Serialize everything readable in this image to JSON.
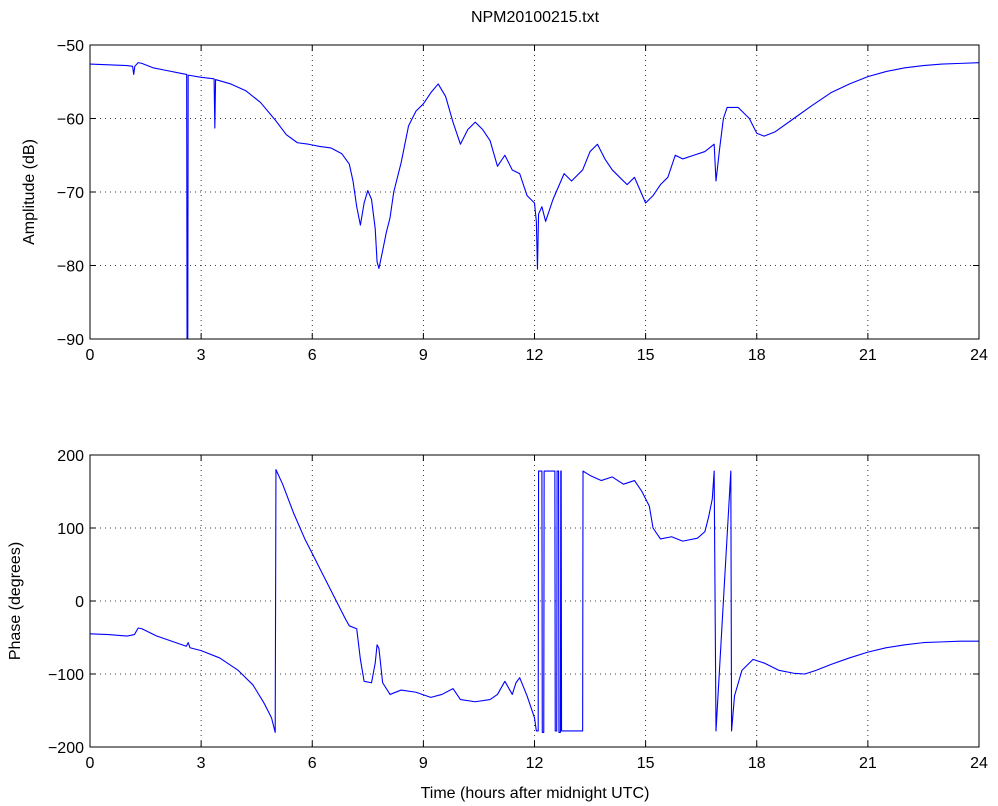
{
  "chart_data": [
    {
      "type": "line",
      "title": "NPM20100215.txt",
      "xlabel": "",
      "ylabel": "Amplitude (dB)",
      "xlim": [
        0,
        24
      ],
      "ylim": [
        -90,
        -50
      ],
      "xticks": [
        "0",
        "3",
        "6",
        "9",
        "12",
        "15",
        "18",
        "21",
        "24"
      ],
      "yticks": [
        "-90",
        "-80",
        "-70",
        "-60",
        "-50"
      ],
      "grid": true,
      "series": [
        {
          "color": "#0000ff",
          "points": [
            [
              0,
              -52.6
            ],
            [
              0.5,
              -52.7
            ],
            [
              1.0,
              -52.8
            ],
            [
              1.15,
              -52.9
            ],
            [
              1.18,
              -54.0
            ],
            [
              1.21,
              -52.9
            ],
            [
              1.3,
              -52.4
            ],
            [
              1.4,
              -52.5
            ],
            [
              1.7,
              -53.1
            ],
            [
              2.0,
              -53.4
            ],
            [
              2.5,
              -53.9
            ],
            [
              2.61,
              -54.0
            ],
            [
              2.62,
              -90.0
            ],
            [
              2.64,
              -90.0
            ],
            [
              2.65,
              -54.1
            ],
            [
              3.0,
              -54.4
            ],
            [
              3.35,
              -54.6
            ],
            [
              3.37,
              -61.3
            ],
            [
              3.39,
              -54.7
            ],
            [
              3.8,
              -55.3
            ],
            [
              4.2,
              -56.2
            ],
            [
              4.6,
              -57.8
            ],
            [
              5.0,
              -60.2
            ],
            [
              5.3,
              -62.2
            ],
            [
              5.6,
              -63.3
            ],
            [
              5.9,
              -63.5
            ],
            [
              6.2,
              -63.8
            ],
            [
              6.5,
              -64.0
            ],
            [
              6.8,
              -64.8
            ],
            [
              7.0,
              -66.2
            ],
            [
              7.1,
              -68.5
            ],
            [
              7.2,
              -72.0
            ],
            [
              7.3,
              -74.5
            ],
            [
              7.4,
              -71.5
            ],
            [
              7.5,
              -69.8
            ],
            [
              7.6,
              -71.0
            ],
            [
              7.7,
              -75.0
            ],
            [
              7.75,
              -79.5
            ],
            [
              7.8,
              -80.4
            ],
            [
              7.9,
              -78.0
            ],
            [
              8.0,
              -75.5
            ],
            [
              8.1,
              -73.5
            ],
            [
              8.2,
              -70.0
            ],
            [
              8.4,
              -66.0
            ],
            [
              8.6,
              -61.0
            ],
            [
              8.8,
              -59.0
            ],
            [
              9.0,
              -58.0
            ],
            [
              9.2,
              -56.5
            ],
            [
              9.4,
              -55.3
            ],
            [
              9.6,
              -57.0
            ],
            [
              9.8,
              -60.5
            ],
            [
              10.0,
              -63.5
            ],
            [
              10.2,
              -61.5
            ],
            [
              10.4,
              -60.5
            ],
            [
              10.6,
              -61.5
            ],
            [
              10.8,
              -63.0
            ],
            [
              11.0,
              -66.5
            ],
            [
              11.2,
              -65.0
            ],
            [
              11.4,
              -67.0
            ],
            [
              11.6,
              -67.5
            ],
            [
              11.8,
              -70.5
            ],
            [
              12.0,
              -71.5
            ],
            [
              12.05,
              -74.0
            ],
            [
              12.08,
              -80.5
            ],
            [
              12.11,
              -73.0
            ],
            [
              12.2,
              -72.0
            ],
            [
              12.3,
              -74.0
            ],
            [
              12.5,
              -71.0
            ],
            [
              12.8,
              -67.5
            ],
            [
              13.0,
              -68.5
            ],
            [
              13.3,
              -67.0
            ],
            [
              13.5,
              -64.5
            ],
            [
              13.7,
              -63.5
            ],
            [
              13.9,
              -65.5
            ],
            [
              14.1,
              -67.0
            ],
            [
              14.3,
              -68.0
            ],
            [
              14.5,
              -69.0
            ],
            [
              14.7,
              -68.0
            ],
            [
              15.0,
              -71.5
            ],
            [
              15.2,
              -70.5
            ],
            [
              15.4,
              -69.0
            ],
            [
              15.6,
              -68.0
            ],
            [
              15.8,
              -65.0
            ],
            [
              16.0,
              -65.5
            ],
            [
              16.3,
              -65.0
            ],
            [
              16.6,
              -64.5
            ],
            [
              16.85,
              -63.5
            ],
            [
              16.9,
              -68.5
            ],
            [
              17.0,
              -64.0
            ],
            [
              17.1,
              -60.0
            ],
            [
              17.2,
              -58.5
            ],
            [
              17.5,
              -58.5
            ],
            [
              17.8,
              -60.0
            ],
            [
              18.0,
              -62.0
            ],
            [
              18.2,
              -62.4
            ],
            [
              18.5,
              -61.8
            ],
            [
              19.0,
              -60.0
            ],
            [
              19.5,
              -58.2
            ],
            [
              20.0,
              -56.5
            ],
            [
              20.5,
              -55.3
            ],
            [
              21.0,
              -54.3
            ],
            [
              21.5,
              -53.6
            ],
            [
              22.0,
              -53.1
            ],
            [
              22.5,
              -52.8
            ],
            [
              23.0,
              -52.6
            ],
            [
              23.5,
              -52.5
            ],
            [
              24.0,
              -52.4
            ]
          ]
        }
      ]
    },
    {
      "type": "line",
      "title": "",
      "xlabel": "Time (hours after midnight UTC)",
      "ylabel": "Phase (degrees)",
      "xlim": [
        0,
        24
      ],
      "ylim": [
        -200,
        200
      ],
      "xticks": [
        "0",
        "3",
        "6",
        "9",
        "12",
        "15",
        "18",
        "21",
        "24"
      ],
      "yticks": [
        "-200",
        "-100",
        "0",
        "100",
        "200"
      ],
      "grid": true,
      "series": [
        {
          "color": "#0000ff",
          "points": [
            [
              0,
              -45
            ],
            [
              0.5,
              -46
            ],
            [
              1.0,
              -48
            ],
            [
              1.2,
              -46
            ],
            [
              1.3,
              -37
            ],
            [
              1.4,
              -38
            ],
            [
              1.8,
              -48
            ],
            [
              2.2,
              -55
            ],
            [
              2.6,
              -62
            ],
            [
              2.65,
              -57
            ],
            [
              2.7,
              -64
            ],
            [
              3.0,
              -68
            ],
            [
              3.5,
              -78
            ],
            [
              4.0,
              -95
            ],
            [
              4.4,
              -115
            ],
            [
              4.7,
              -140
            ],
            [
              4.9,
              -160
            ],
            [
              5.0,
              -180
            ],
            [
              5.02,
              180
            ],
            [
              5.2,
              160
            ],
            [
              5.5,
              120
            ],
            [
              5.8,
              85
            ],
            [
              6.0,
              65
            ],
            [
              6.3,
              35
            ],
            [
              6.6,
              5
            ],
            [
              6.9,
              -25
            ],
            [
              7.0,
              -34
            ],
            [
              7.2,
              -38
            ],
            [
              7.3,
              -80
            ],
            [
              7.4,
              -110
            ],
            [
              7.6,
              -112
            ],
            [
              7.7,
              -85
            ],
            [
              7.75,
              -60
            ],
            [
              7.8,
              -65
            ],
            [
              7.9,
              -112
            ],
            [
              8.1,
              -128
            ],
            [
              8.4,
              -122
            ],
            [
              8.8,
              -125
            ],
            [
              9.2,
              -132
            ],
            [
              9.5,
              -128
            ],
            [
              9.8,
              -120
            ],
            [
              10.0,
              -135
            ],
            [
              10.4,
              -138
            ],
            [
              10.8,
              -135
            ],
            [
              11.0,
              -128
            ],
            [
              11.2,
              -110
            ],
            [
              11.4,
              -128
            ],
            [
              11.5,
              -112
            ],
            [
              11.6,
              -105
            ],
            [
              11.8,
              -130
            ],
            [
              12.0,
              -160
            ],
            [
              12.05,
              -178
            ],
            [
              12.1,
              -178
            ],
            [
              12.11,
              178
            ],
            [
              12.2,
              178
            ],
            [
              12.21,
              -180
            ],
            [
              12.25,
              -180
            ],
            [
              12.26,
              178
            ],
            [
              12.55,
              178
            ],
            [
              12.56,
              -178
            ],
            [
              12.6,
              -178
            ],
            [
              12.61,
              178
            ],
            [
              12.65,
              178
            ],
            [
              12.66,
              -180
            ],
            [
              12.7,
              -180
            ],
            [
              12.71,
              178
            ],
            [
              12.72,
              178
            ],
            [
              12.73,
              -178
            ],
            [
              13.3,
              -178
            ],
            [
              13.31,
              178
            ],
            [
              13.5,
              172
            ],
            [
              13.8,
              165
            ],
            [
              14.1,
              170
            ],
            [
              14.4,
              160
            ],
            [
              14.7,
              165
            ],
            [
              14.9,
              150
            ],
            [
              15.1,
              130
            ],
            [
              15.2,
              100
            ],
            [
              15.4,
              85
            ],
            [
              15.7,
              88
            ],
            [
              16.0,
              82
            ],
            [
              16.4,
              86
            ],
            [
              16.6,
              95
            ],
            [
              16.7,
              115
            ],
            [
              16.8,
              140
            ],
            [
              16.85,
              178
            ],
            [
              16.9,
              -178
            ],
            [
              17.3,
              178
            ],
            [
              17.32,
              -178
            ],
            [
              17.4,
              -130
            ],
            [
              17.6,
              -95
            ],
            [
              17.9,
              -80
            ],
            [
              18.2,
              -85
            ],
            [
              18.6,
              -95
            ],
            [
              19.0,
              -99
            ],
            [
              19.3,
              -100
            ],
            [
              19.6,
              -95
            ],
            [
              20.0,
              -87
            ],
            [
              20.5,
              -78
            ],
            [
              21.0,
              -70
            ],
            [
              21.5,
              -64
            ],
            [
              22.0,
              -60
            ],
            [
              22.5,
              -57
            ],
            [
              23.0,
              -56
            ],
            [
              23.5,
              -55
            ],
            [
              24.0,
              -55
            ]
          ]
        }
      ]
    }
  ]
}
